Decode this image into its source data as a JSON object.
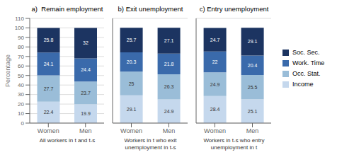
{
  "chart_data": [
    {
      "type": "bar",
      "title": "a)  Remain employment",
      "subtitle": "All workers in t and t-s",
      "ylabel": "Percentage",
      "categories": [
        "Women",
        "Men"
      ],
      "series": [
        {
          "name": "Income",
          "color": "#c5d8ed",
          "values": [
            22.4,
            19.9
          ]
        },
        {
          "name": "Occ. Stat.",
          "color": "#9abdd8",
          "values": [
            27.7,
            23.7
          ]
        },
        {
          "name": "Work. Time",
          "color": "#3a6aab",
          "values": [
            24.1,
            24.4
          ]
        },
        {
          "name": "Soc. Sec.",
          "color": "#1c3461",
          "values": [
            25.8,
            32
          ]
        }
      ],
      "ylim": [
        0,
        110
      ],
      "yticks": [
        0,
        10,
        20,
        30,
        40,
        50,
        60,
        70,
        80,
        90,
        100,
        110
      ],
      "grid": true,
      "stacked": true,
      "data_labels": true
    },
    {
      "type": "bar",
      "title": "b) Exit unemployment",
      "subtitle": "Workers in t who exit unemployment in t-s",
      "categories": [
        "Women",
        "Men"
      ],
      "series": [
        {
          "name": "Income",
          "color": "#c5d8ed",
          "values": [
            29.1,
            24.9
          ]
        },
        {
          "name": "Occ. Stat.",
          "color": "#9abdd8",
          "values": [
            25.0,
            26.3
          ]
        },
        {
          "name": "Work. Time",
          "color": "#3a6aab",
          "values": [
            20.3,
            21.8
          ]
        },
        {
          "name": "Soc. Sec.",
          "color": "#1c3461",
          "values": [
            25.7,
            27.1
          ]
        }
      ],
      "ylim": [
        0,
        110
      ],
      "yticks": [
        0,
        10,
        20,
        30,
        40,
        50,
        60,
        70,
        80,
        90,
        100,
        110
      ],
      "grid": true,
      "stacked": true,
      "data_labels": true,
      "tick_labels": "x"
    },
    {
      "type": "bar",
      "title": "c) Entry unemployment",
      "subtitle": "Workers in t-s who entry unemployment in t",
      "categories": [
        "Women",
        "Men"
      ],
      "series": [
        {
          "name": "Income",
          "color": "#c5d8ed",
          "values": [
            28.4,
            25.1
          ]
        },
        {
          "name": "Occ. Stat.",
          "color": "#9abdd8",
          "values": [
            24.9,
            25.5
          ]
        },
        {
          "name": "Work. Time",
          "color": "#3a6aab",
          "values": [
            22,
            20.4
          ]
        },
        {
          "name": "Soc. Sec.",
          "color": "#1c3461",
          "values": [
            24.7,
            29.1
          ]
        }
      ],
      "ylim": [
        0,
        110
      ],
      "yticks": [
        0,
        10,
        20,
        30,
        40,
        50,
        60,
        70,
        80,
        90,
        100,
        110
      ],
      "grid": true,
      "stacked": true,
      "data_labels": true,
      "tick_labels": "x",
      "legend": "right"
    }
  ]
}
